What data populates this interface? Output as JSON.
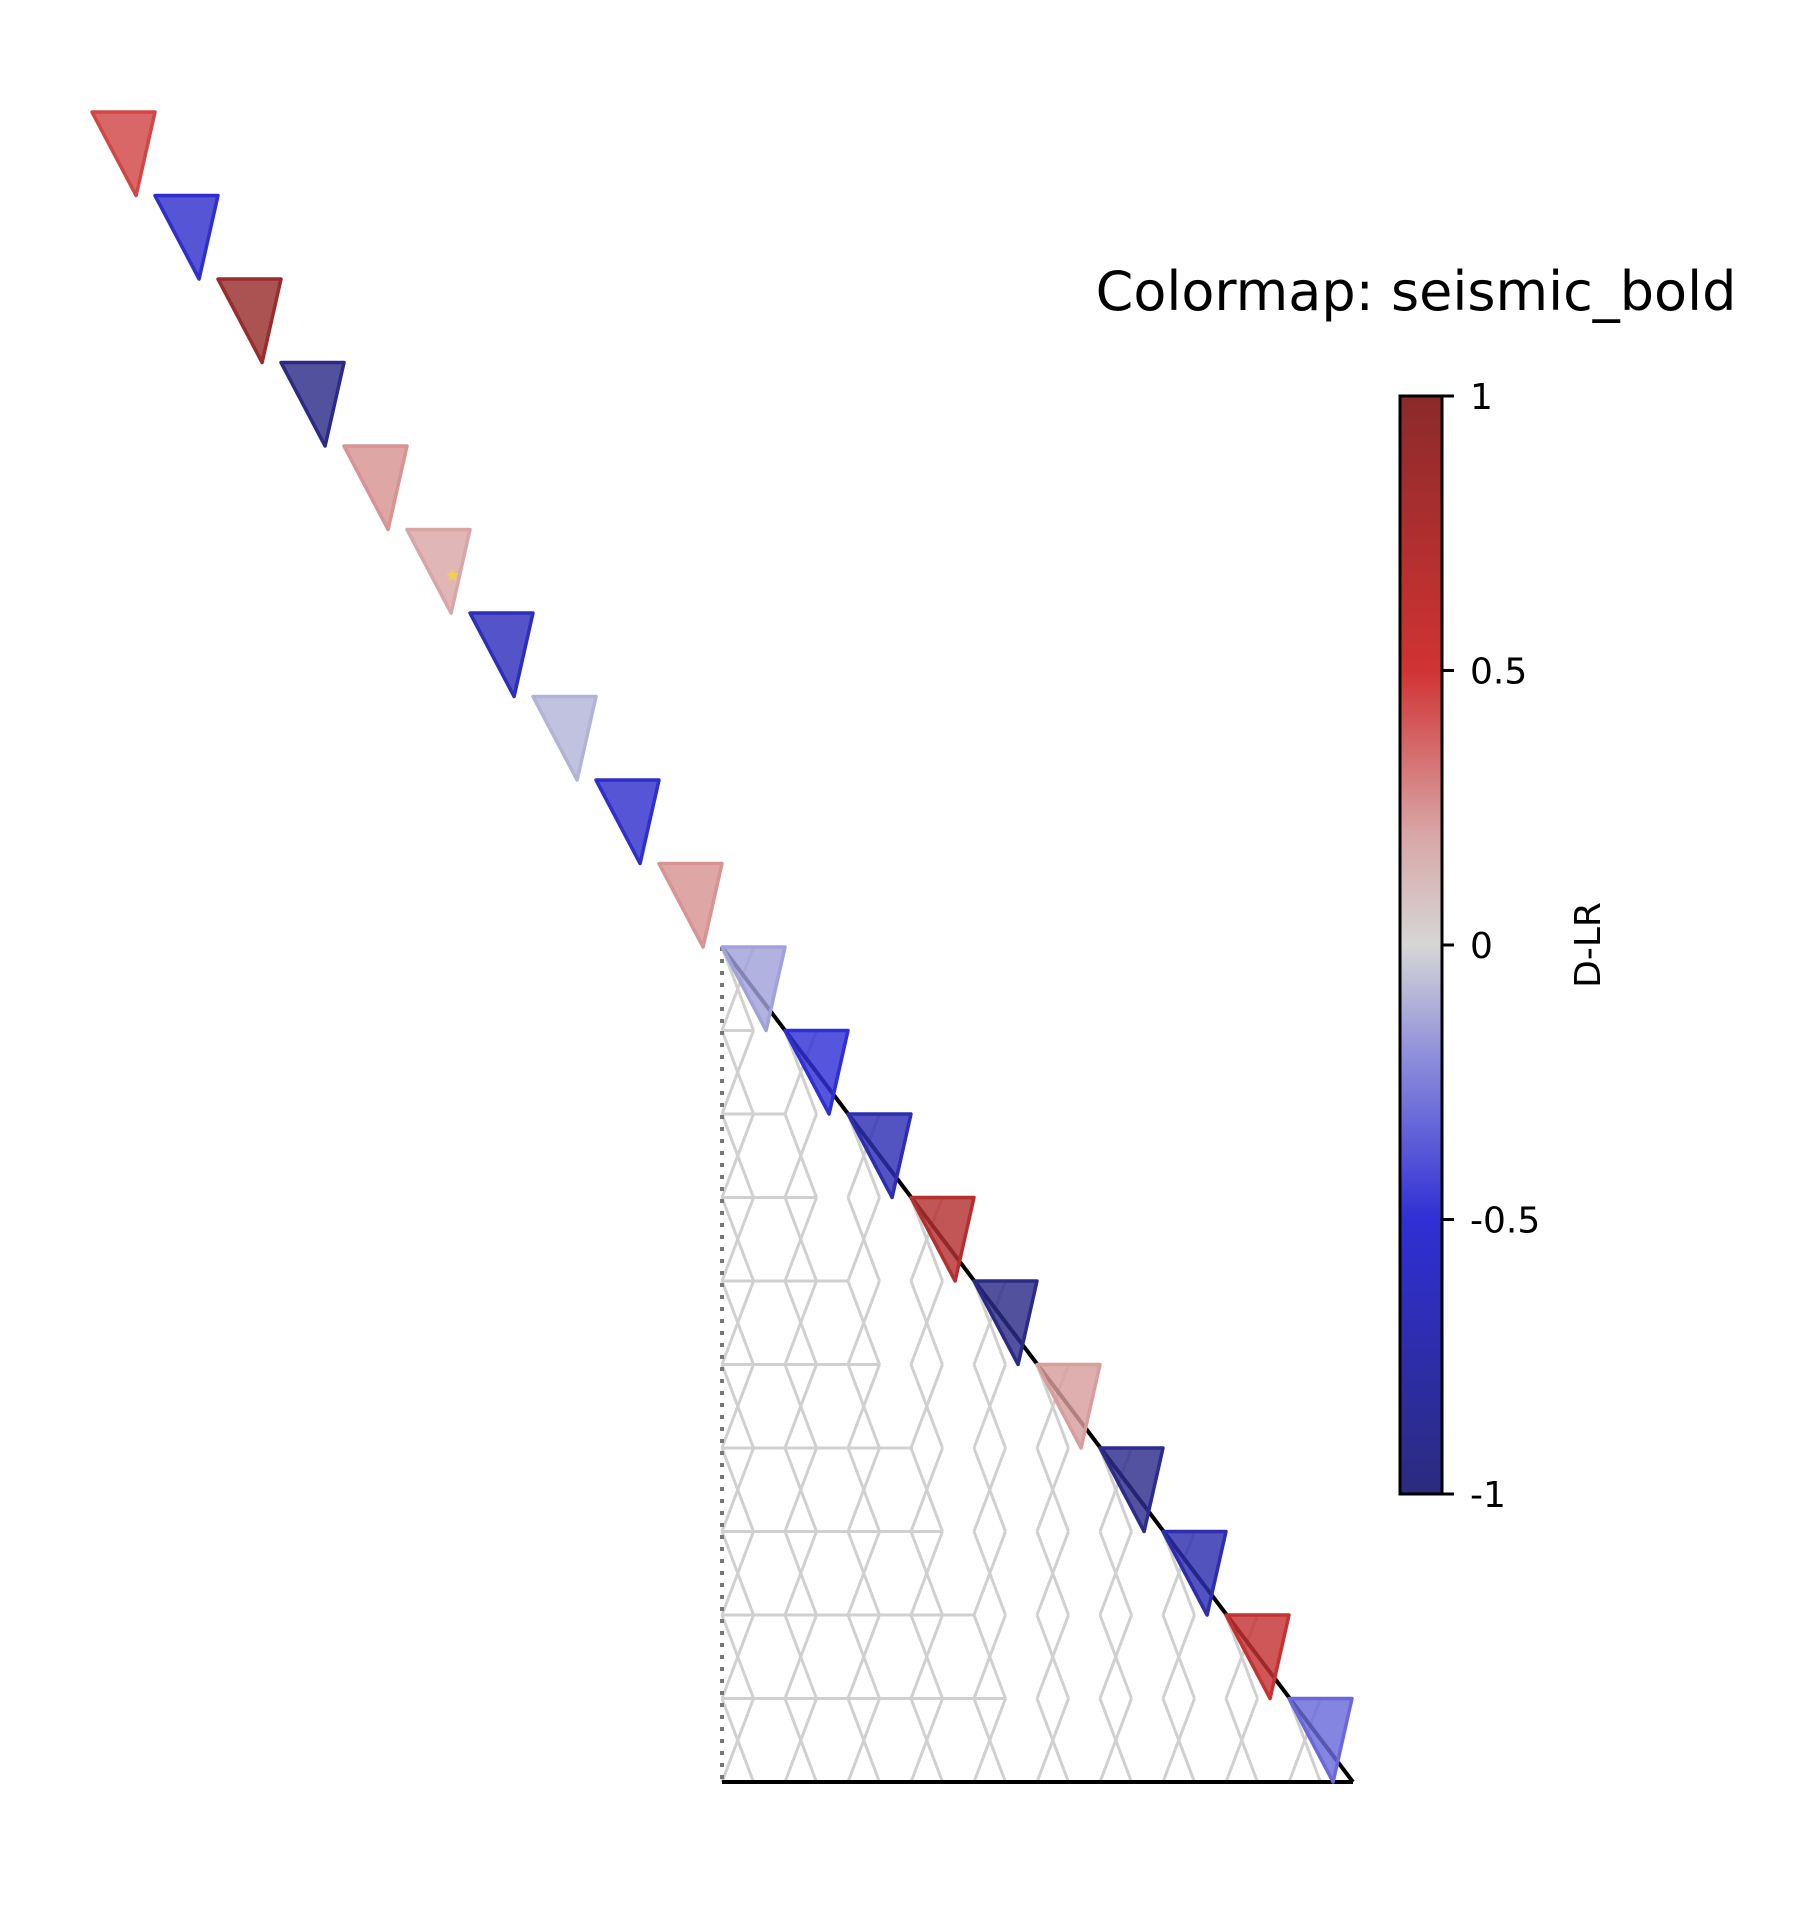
{
  "chart_data": {
    "type": "heatmap",
    "layout": "lower-triangular-lattice-diagonal",
    "title": "Colormap: seismic_bold",
    "colorbar": {
      "label": "D-LR",
      "range": [
        -1,
        1
      ],
      "ticks": [
        1,
        0.5,
        0,
        -0.5,
        -1
      ],
      "tick_labels": [
        "1",
        "0.5",
        "0",
        "-0.5",
        "-1"
      ],
      "stops": [
        {
          "value": -1.0,
          "color": "#2b2b7e"
        },
        {
          "value": -0.5,
          "color": "#2f2fd6"
        },
        {
          "value": -0.2,
          "color": "#8f8fdc"
        },
        {
          "value": 0.0,
          "color": "#d6d6d6"
        },
        {
          "value": 0.2,
          "color": "#d9a6a6"
        },
        {
          "value": 0.5,
          "color": "#d13333"
        },
        {
          "value": 1.0,
          "color": "#8b2a2a"
        }
      ]
    },
    "diagonal_values": [
      0.45,
      -0.55,
      0.9,
      -0.95,
      0.25,
      0.2,
      -0.65,
      -0.1,
      -0.55,
      0.25,
      -0.15,
      -0.5,
      -0.7,
      0.7,
      -0.95,
      0.22,
      -0.92,
      -0.72,
      0.58,
      -0.32
    ],
    "lattice_rows": 10,
    "marker_cell_index": 5,
    "marker_color": "#f0d24a"
  }
}
